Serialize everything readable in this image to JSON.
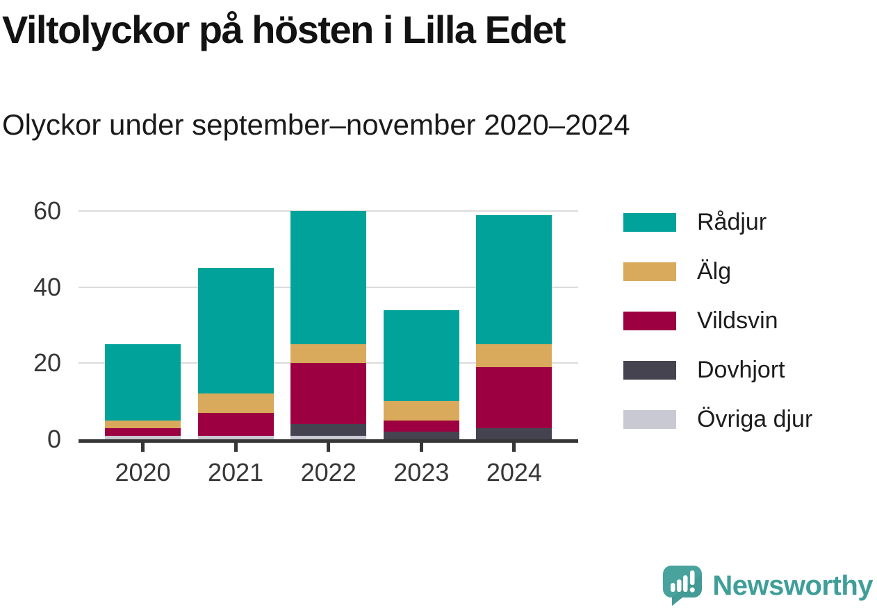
{
  "header": {
    "title": "Viltolyckor på hösten i Lilla Edet",
    "subtitle": "Olyckor under september–november 2020–2024"
  },
  "chart_data": {
    "type": "bar",
    "stacked": true,
    "title": "Viltolyckor på hösten i Lilla Edet",
    "subtitle": "Olyckor under september–november 2020–2024",
    "categories": [
      "2020",
      "2021",
      "2022",
      "2023",
      "2024"
    ],
    "series": [
      {
        "name": "Rådjur",
        "color": "#00a29a",
        "values": [
          20,
          33,
          35,
          24,
          34
        ]
      },
      {
        "name": "Älg",
        "color": "#d9a95c",
        "values": [
          2,
          5,
          5,
          5,
          6
        ]
      },
      {
        "name": "Vildsvin",
        "color": "#9c0040",
        "values": [
          2,
          6,
          16,
          3,
          16
        ]
      },
      {
        "name": "Dovhjort",
        "color": "#45434f",
        "values": [
          0,
          0,
          3,
          2,
          3
        ]
      },
      {
        "name": "Övriga djur",
        "color": "#c9c9d3",
        "values": [
          1,
          1,
          1,
          0,
          0
        ]
      }
    ],
    "totals": [
      25,
      45,
      60,
      34,
      59
    ],
    "stack_order_bottom_up": [
      "Övriga djur",
      "Dovhjort",
      "Vildsvin",
      "Älg",
      "Rådjur"
    ],
    "xlabel": "",
    "ylabel": "",
    "yticks": [
      0,
      20,
      40,
      60
    ],
    "ylim": [
      0,
      60
    ],
    "grid": true,
    "legend_position": "right",
    "grid_color": "#dbdbdb",
    "axis_color": "#363636"
  },
  "branding": {
    "name": "Newsworthy",
    "color": "#3f9e98",
    "icon": "newsworthy-speech-bubble-barchart-icon"
  }
}
